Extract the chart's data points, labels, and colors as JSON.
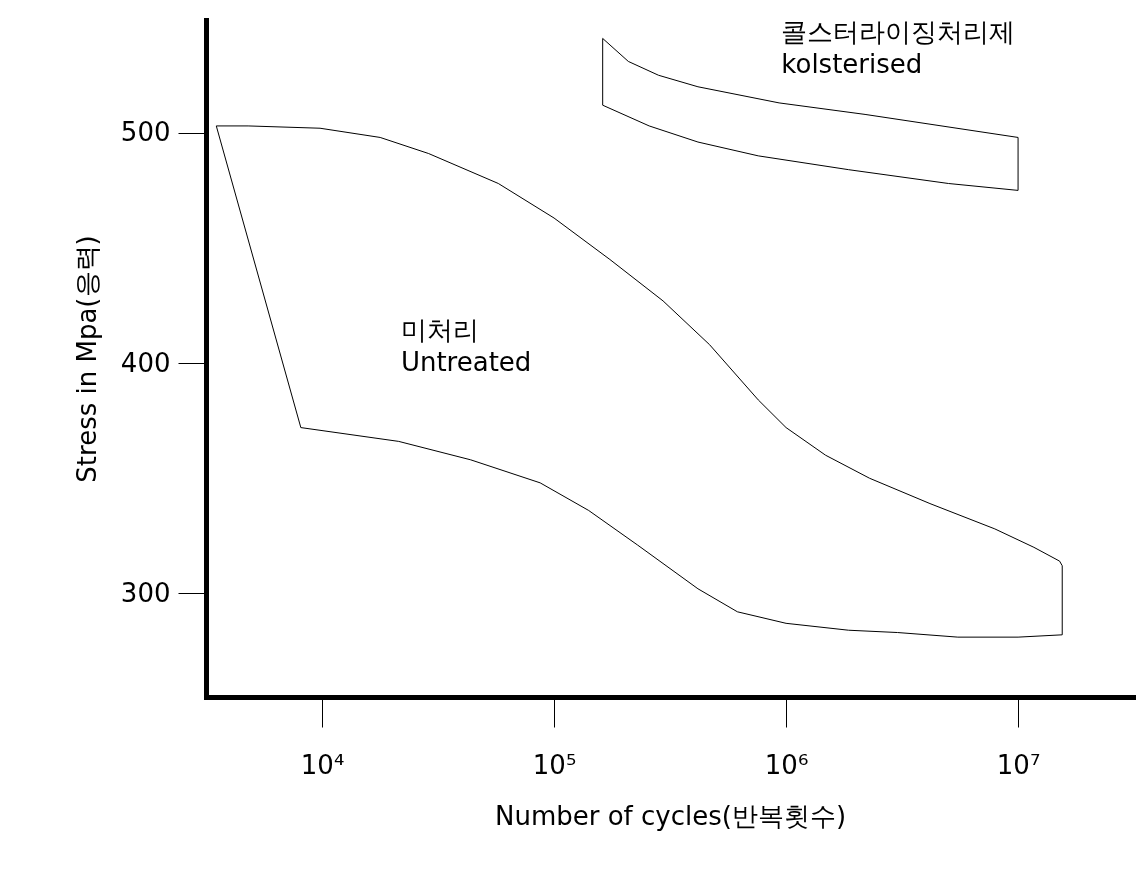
{
  "chart_data": {
    "type": "line",
    "xlabel": "Number of cycles(반복횟수)",
    "ylabel": "Stress in Mpa(응력)",
    "log": "x",
    "xlim": [
      3160,
      31600000
    ],
    "ylim": [
      255,
      549
    ],
    "xticks": [
      {
        "value": 10000,
        "label": "10⁴"
      },
      {
        "value": 100000,
        "label": "10⁵"
      },
      {
        "value": 1000000,
        "label": "10⁶"
      },
      {
        "value": 10000000,
        "label": "10⁷"
      }
    ],
    "yticks": [
      300,
      400,
      500
    ],
    "grid": false,
    "marker": "none",
    "line_style": "solid",
    "series": [
      {
        "color": "#000000",
        "x": [
          3500,
          4800,
          9800,
          17800,
          28800,
          57500,
          100000,
          174000,
          295000,
          468000,
          759000,
          1000000,
          1480000,
          2290000,
          4170000,
          7940000,
          11700000,
          15100000,
          15500000
        ],
        "values": [
          503,
          503,
          502,
          498,
          491,
          478,
          463,
          445,
          427,
          408,
          384,
          372,
          360,
          350,
          339,
          328,
          320,
          314,
          312
        ]
      },
      {
        "color": "#000000",
        "x": [
          3500,
          8100,
          21400,
          43700,
          87100,
          141000,
          229000,
          417000,
          617000,
          1000000,
          1860000,
          3020000,
          5500000,
          10000000,
          15500000,
          15500000
        ],
        "values": [
          503,
          372,
          366,
          358,
          348,
          336,
          321,
          302,
          292,
          287,
          284,
          283,
          281,
          281,
          282,
          312
        ]
      },
      {
        "color": "#000000",
        "x": [
          162000,
          209000,
          282000,
          417000,
          933000,
          2190000,
          10000000
        ],
        "values": [
          541,
          531,
          525,
          520,
          513,
          508,
          498
        ]
      },
      {
        "color": "#000000",
        "x": [
          162000,
          162000,
          257000,
          417000,
          759000,
          1860000,
          5010000,
          10000000,
          10000000
        ],
        "values": [
          541,
          512,
          503,
          496,
          490,
          484,
          478,
          475,
          498
        ]
      }
    ],
    "annotations": [
      "미처리\nUntreated",
      "콜스터라이징처리제\nkolsterised"
    ]
  }
}
